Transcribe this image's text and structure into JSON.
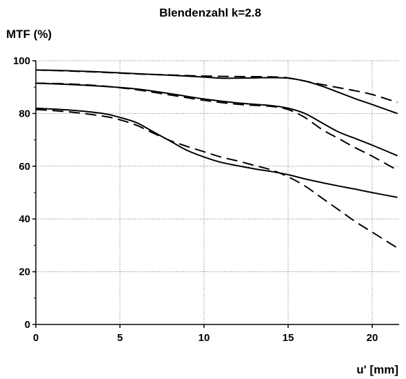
{
  "chart_data": {
    "type": "line",
    "title": "Blendenzahl k=2.8",
    "xlabel": "u' [mm]",
    "ylabel": "MTF (%)",
    "xlim": [
      0,
      21.6
    ],
    "ylim": [
      0,
      100
    ],
    "xticks": [
      0,
      5,
      10,
      15,
      20
    ],
    "yticks": [
      0,
      20,
      40,
      60,
      80,
      100
    ],
    "grid": true,
    "legend": "none",
    "series": [
      {
        "style": "solid",
        "points": [
          [
            0,
            96.5
          ],
          [
            2,
            96.2
          ],
          [
            4,
            95.7
          ],
          [
            6,
            95.1
          ],
          [
            8,
            94.5
          ],
          [
            10,
            93.8
          ],
          [
            11,
            93.4
          ],
          [
            12,
            93.4
          ],
          [
            13,
            93.5
          ],
          [
            14,
            93.6
          ],
          [
            15,
            93.4
          ],
          [
            16,
            92.3
          ],
          [
            17,
            90.4
          ],
          [
            18,
            88.0
          ],
          [
            19,
            85.6
          ],
          [
            20,
            83.4
          ],
          [
            21.5,
            80.0
          ]
        ]
      },
      {
        "style": "dashed",
        "points": [
          [
            0,
            96.5
          ],
          [
            2,
            96.1
          ],
          [
            4,
            95.6
          ],
          [
            6,
            95.0
          ],
          [
            8,
            94.6
          ],
          [
            10,
            94.2
          ],
          [
            12,
            94.0
          ],
          [
            14,
            93.9
          ],
          [
            15,
            93.5
          ],
          [
            16,
            92.3
          ],
          [
            17,
            91.0
          ],
          [
            18,
            89.8
          ],
          [
            19,
            88.6
          ],
          [
            20,
            87.2
          ],
          [
            21.5,
            84.2
          ]
        ]
      },
      {
        "style": "solid",
        "points": [
          [
            0,
            91.5
          ],
          [
            2,
            91.0
          ],
          [
            4,
            90.3
          ],
          [
            6,
            89.3
          ],
          [
            8,
            87.5
          ],
          [
            10,
            85.5
          ],
          [
            12,
            84.0
          ],
          [
            14,
            83.0
          ],
          [
            15,
            82.0
          ],
          [
            16,
            80.0
          ],
          [
            17,
            76.5
          ],
          [
            18,
            73.0
          ],
          [
            19,
            70.5
          ],
          [
            20,
            68.0
          ],
          [
            21.5,
            64.0
          ]
        ]
      },
      {
        "style": "dashed",
        "points": [
          [
            0,
            91.5
          ],
          [
            2,
            91.2
          ],
          [
            4,
            90.4
          ],
          [
            6,
            89.0
          ],
          [
            8,
            87.0
          ],
          [
            10,
            85.0
          ],
          [
            12,
            83.5
          ],
          [
            14,
            82.7
          ],
          [
            15,
            81.5
          ],
          [
            16,
            78.5
          ],
          [
            17,
            74.0
          ],
          [
            18,
            70.5
          ],
          [
            19,
            67.0
          ],
          [
            20,
            63.8
          ],
          [
            21.5,
            58.5
          ]
        ]
      },
      {
        "style": "solid",
        "points": [
          [
            0,
            82.0
          ],
          [
            2,
            81.3
          ],
          [
            4,
            80.0
          ],
          [
            5,
            78.5
          ],
          [
            6,
            76.5
          ],
          [
            7,
            73.0
          ],
          [
            8,
            69.5
          ],
          [
            9,
            66.0
          ],
          [
            10,
            63.5
          ],
          [
            11,
            61.5
          ],
          [
            12,
            60.2
          ],
          [
            13,
            59.0
          ],
          [
            14,
            58.0
          ],
          [
            15,
            56.8
          ],
          [
            16,
            55.2
          ],
          [
            17,
            53.8
          ],
          [
            18,
            52.5
          ],
          [
            19,
            51.3
          ],
          [
            20,
            50.0
          ],
          [
            21.5,
            48.2
          ]
        ]
      },
      {
        "style": "dashed",
        "points": [
          [
            0,
            81.5
          ],
          [
            2,
            80.6
          ],
          [
            4,
            79.0
          ],
          [
            5,
            77.6
          ],
          [
            6,
            75.5
          ],
          [
            7,
            72.5
          ],
          [
            8,
            69.7
          ],
          [
            9,
            67.5
          ],
          [
            10,
            65.5
          ],
          [
            11,
            63.5
          ],
          [
            12,
            62.0
          ],
          [
            13,
            60.3
          ],
          [
            14,
            58.6
          ],
          [
            15,
            56.0
          ],
          [
            16,
            52.5
          ],
          [
            17,
            48.0
          ],
          [
            18,
            43.5
          ],
          [
            19,
            39.0
          ],
          [
            20,
            35.0
          ],
          [
            21.5,
            29.0
          ]
        ]
      }
    ]
  }
}
